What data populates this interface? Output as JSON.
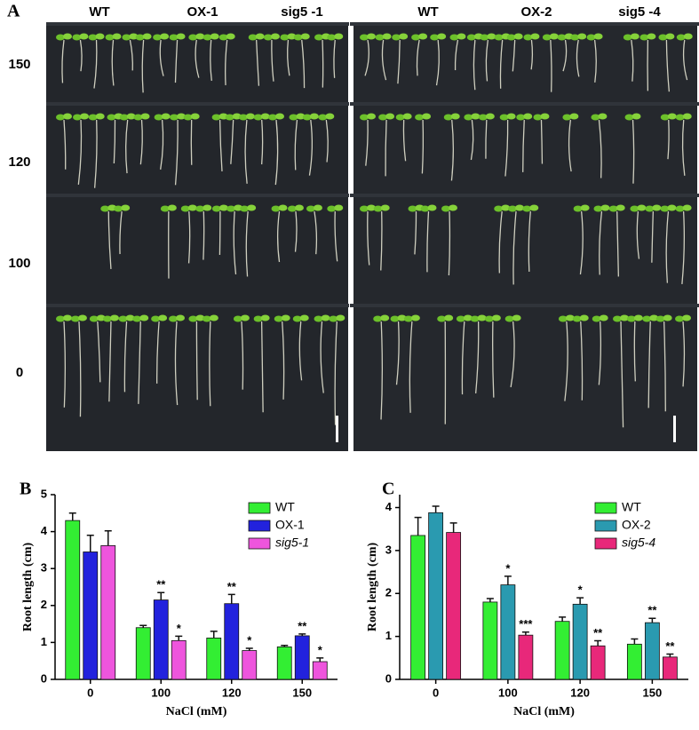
{
  "panel_a": {
    "label": "A",
    "left_columns": [
      "WT",
      "OX-1",
      "sig5 -1"
    ],
    "right_columns": [
      "WT",
      "OX-2",
      "sig5 -4"
    ],
    "rows": [
      "150",
      "120",
      "100",
      "0"
    ]
  },
  "chart_data": [
    {
      "type": "bar",
      "panel_label": "B",
      "xlabel": "NaCl (mM)",
      "ylabel": "Root length (cm)",
      "categories": [
        "0",
        "100",
        "120",
        "150"
      ],
      "ylim": [
        0,
        5
      ],
      "yticks": [
        0,
        1,
        2,
        3,
        4,
        5
      ],
      "series": [
        {
          "name": "WT",
          "color": "#33ee33",
          "values": [
            4.3,
            1.4,
            1.12,
            0.88
          ],
          "errors": [
            0.2,
            0.06,
            0.18,
            0.04
          ],
          "significance": [
            null,
            null,
            null,
            null
          ]
        },
        {
          "name": "OX-1",
          "color": "#2222dd",
          "values": [
            3.45,
            2.15,
            2.05,
            1.18
          ],
          "errors": [
            0.45,
            0.2,
            0.25,
            0.05
          ],
          "significance": [
            null,
            "**",
            "**",
            "**"
          ]
        },
        {
          "name": "sig5-1",
          "color": "#ee55dd",
          "values": [
            3.62,
            1.05,
            0.78,
            0.48
          ],
          "errors": [
            0.4,
            0.12,
            0.06,
            0.1
          ],
          "significance": [
            null,
            "*",
            "*",
            "*"
          ]
        }
      ]
    },
    {
      "type": "bar",
      "panel_label": "C",
      "xlabel": "NaCl (mM)",
      "ylabel": "Root length (cm)",
      "categories": [
        "0",
        "100",
        "120",
        "150"
      ],
      "ylim": [
        0,
        4.3
      ],
      "yticks": [
        0,
        1,
        2,
        3,
        4
      ],
      "series": [
        {
          "name": "WT",
          "color": "#33ee33",
          "values": [
            3.35,
            1.8,
            1.35,
            0.82
          ],
          "errors": [
            0.42,
            0.08,
            0.1,
            0.12
          ],
          "significance": [
            null,
            null,
            null,
            null
          ]
        },
        {
          "name": "OX-2",
          "color": "#2a9ab0",
          "values": [
            3.88,
            2.2,
            1.75,
            1.32
          ],
          "errors": [
            0.15,
            0.2,
            0.15,
            0.1
          ],
          "significance": [
            null,
            "*",
            "*",
            "**"
          ]
        },
        {
          "name": "sig5-4",
          "color": "#e8287a",
          "values": [
            3.42,
            1.03,
            0.78,
            0.52
          ],
          "errors": [
            0.22,
            0.07,
            0.12,
            0.07
          ],
          "significance": [
            null,
            "***",
            "**",
            "**"
          ]
        }
      ]
    }
  ]
}
